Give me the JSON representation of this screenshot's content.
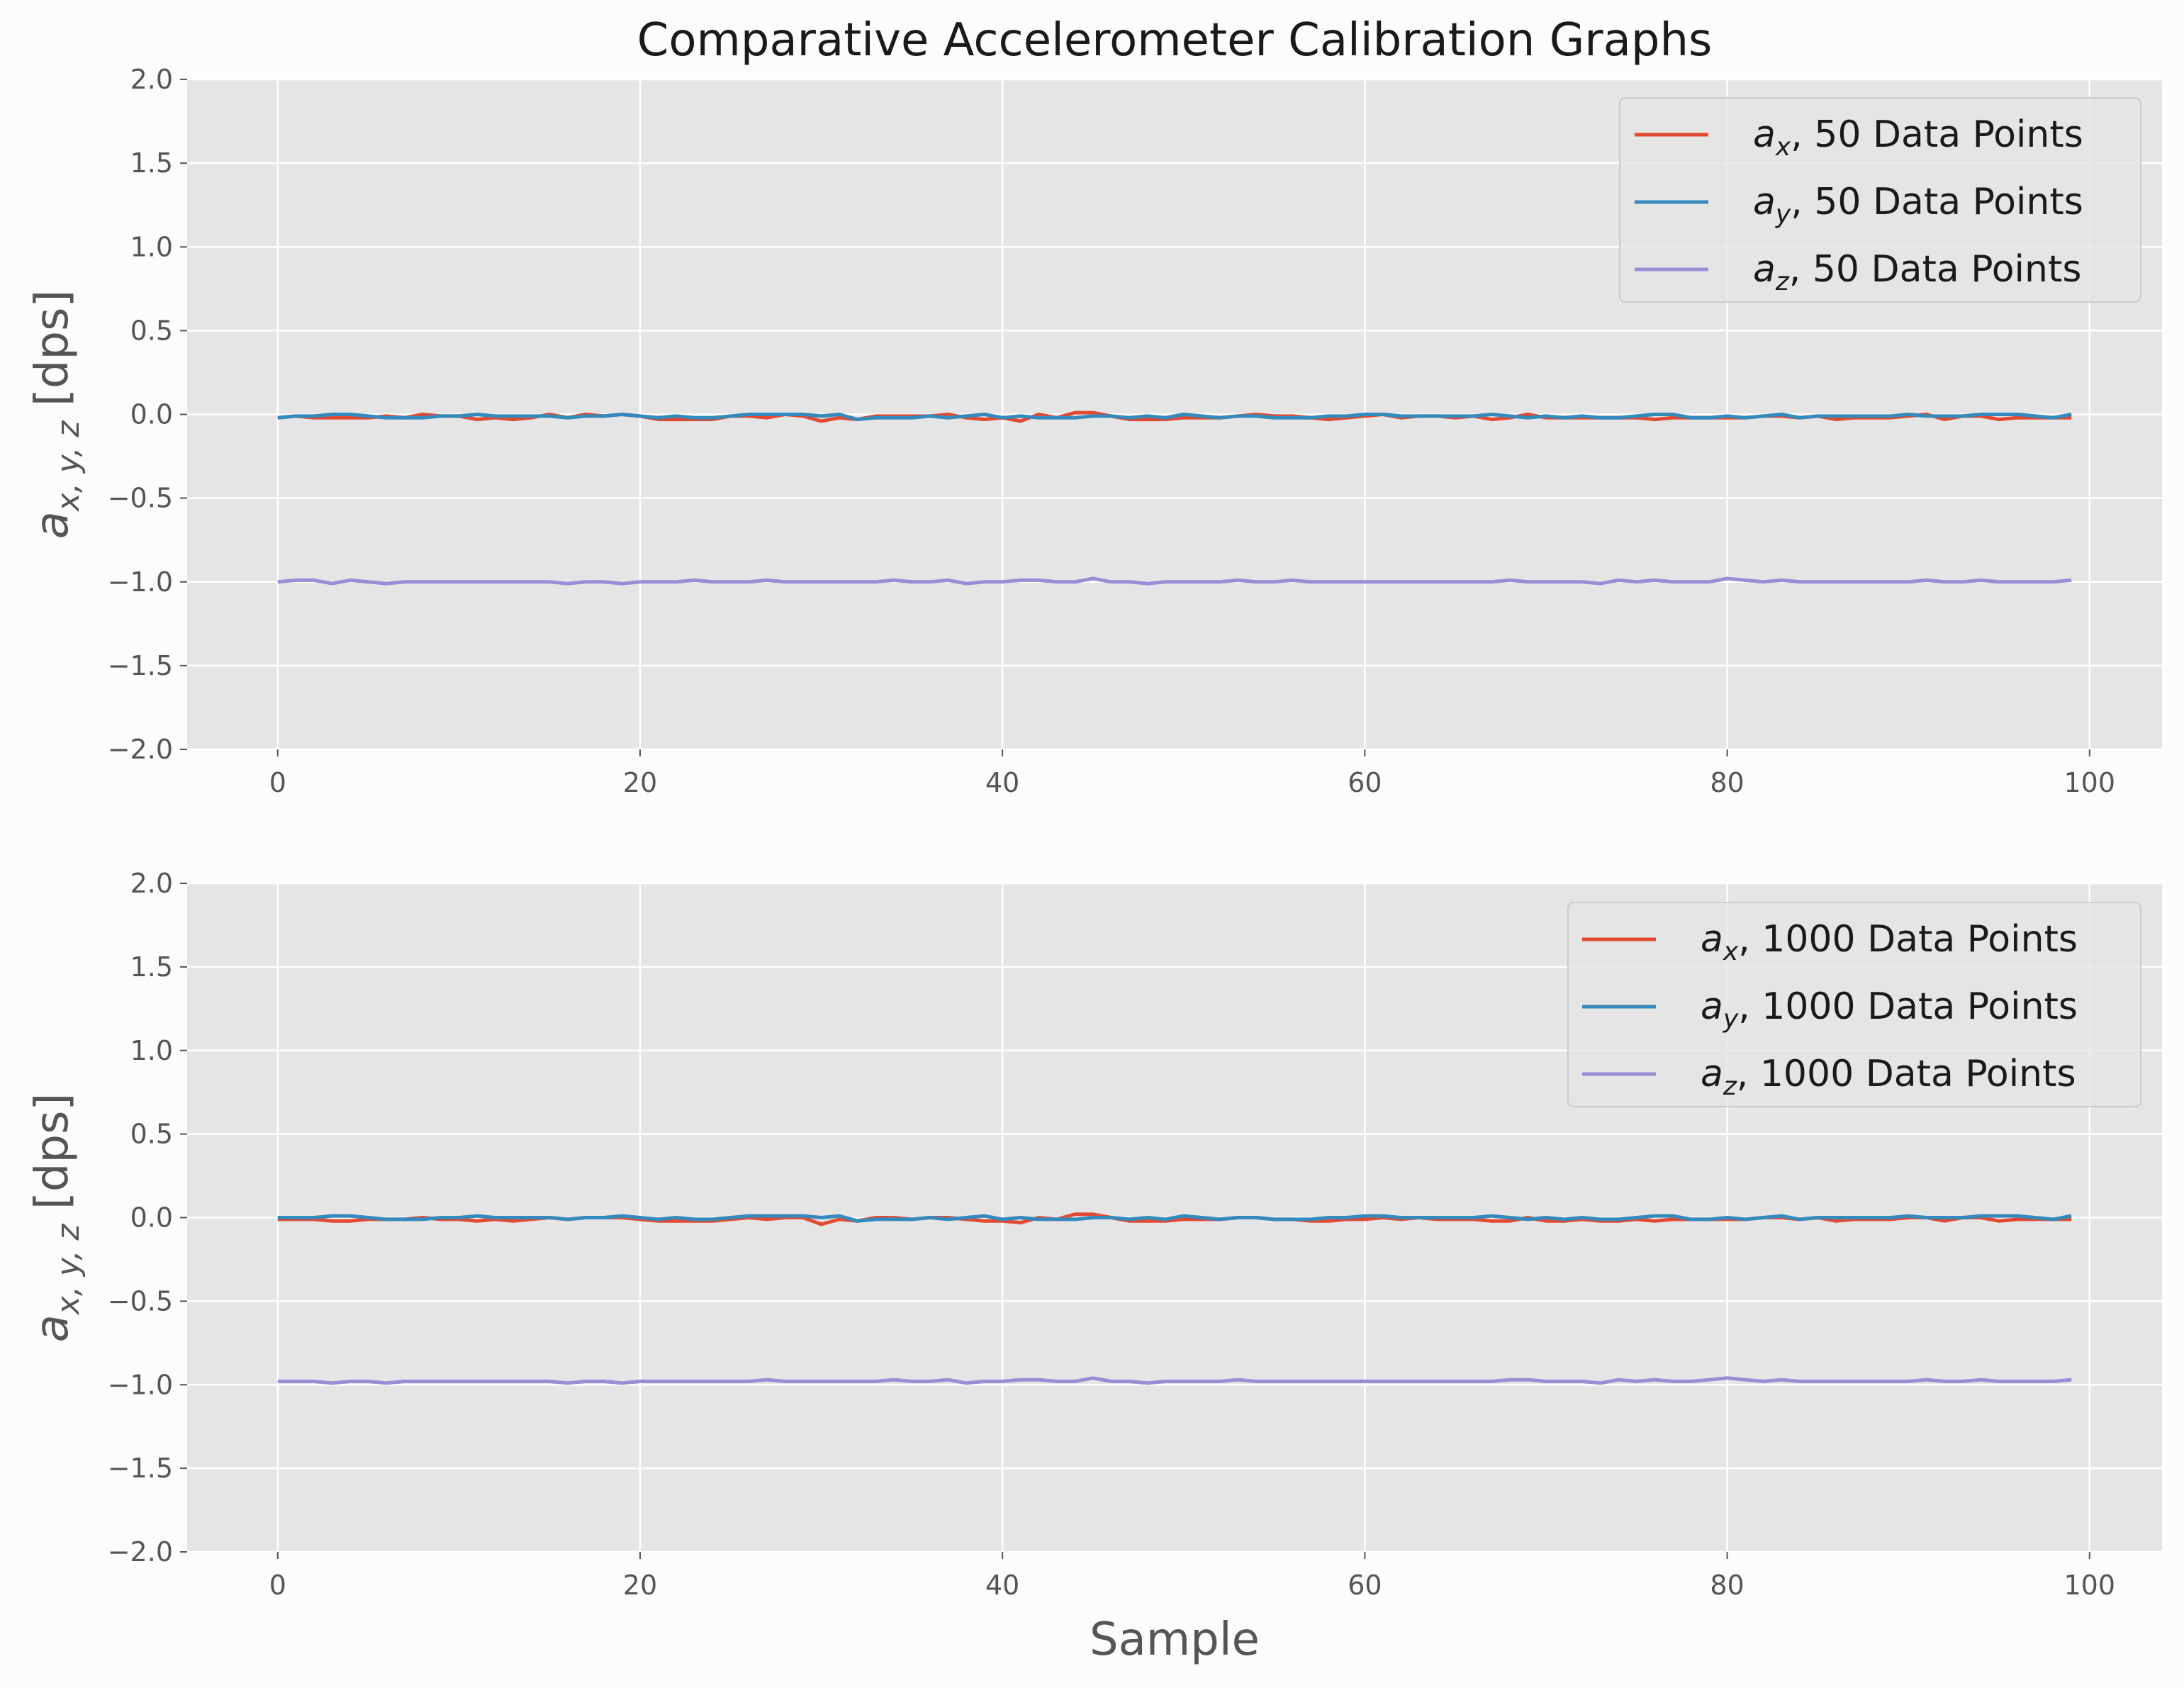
{
  "chart_data": {
    "type": "line",
    "title": "Comparative Accelerometer Calibration Graphs",
    "xlabel": "Sample",
    "ylabel_main": "a",
    "ylabel_sub": "x, y, z",
    "ylabel_unit": "[dps]",
    "xlim": [
      -5,
      104
    ],
    "ylim": [
      -2.0,
      2.0
    ],
    "xticks": [
      0,
      20,
      40,
      60,
      80,
      100
    ],
    "yticks": [
      -2.0,
      -1.5,
      -1.0,
      -0.5,
      0.0,
      0.5,
      1.0,
      1.5,
      2.0
    ],
    "grid": true,
    "legend_position": "top-right",
    "colors": {
      "ax": "#E24A33",
      "ay": "#348ABD",
      "az": "#988ED5",
      "plot_bg": "#E5E5E5",
      "grid": "#FFFFFF",
      "page_bg": "#FCFCFC"
    },
    "x": [
      0,
      1,
      2,
      3,
      4,
      5,
      6,
      7,
      8,
      9,
      10,
      11,
      12,
      13,
      14,
      15,
      16,
      17,
      18,
      19,
      20,
      21,
      22,
      23,
      24,
      25,
      26,
      27,
      28,
      29,
      30,
      31,
      32,
      33,
      34,
      35,
      36,
      37,
      38,
      39,
      40,
      41,
      42,
      43,
      44,
      45,
      46,
      47,
      48,
      49,
      50,
      51,
      52,
      53,
      54,
      55,
      56,
      57,
      58,
      59,
      60,
      61,
      62,
      63,
      64,
      65,
      66,
      67,
      68,
      69,
      70,
      71,
      72,
      73,
      74,
      75,
      76,
      77,
      78,
      79,
      80,
      81,
      82,
      83,
      84,
      85,
      86,
      87,
      88,
      89,
      90,
      91,
      92,
      93,
      94,
      95,
      96,
      97,
      98,
      99
    ],
    "panels": [
      {
        "series": [
          {
            "name_main": "a",
            "name_sub": "x",
            "name_rest": ", 50 Data Points",
            "key": "ax",
            "values": [
              -0.02,
              -0.01,
              -0.02,
              -0.02,
              -0.02,
              -0.02,
              -0.01,
              -0.02,
              0.0,
              -0.01,
              -0.01,
              -0.03,
              -0.02,
              -0.03,
              -0.02,
              0.0,
              -0.02,
              0.0,
              -0.01,
              0.0,
              -0.01,
              -0.03,
              -0.03,
              -0.03,
              -0.03,
              -0.01,
              -0.01,
              -0.02,
              0.0,
              -0.01,
              -0.04,
              -0.02,
              -0.03,
              -0.01,
              -0.01,
              -0.01,
              -0.01,
              0.0,
              -0.02,
              -0.03,
              -0.02,
              -0.04,
              0.0,
              -0.02,
              0.01,
              0.01,
              -0.01,
              -0.03,
              -0.03,
              -0.03,
              -0.02,
              -0.02,
              -0.02,
              -0.01,
              0.0,
              -0.01,
              -0.01,
              -0.02,
              -0.03,
              -0.02,
              -0.01,
              0.0,
              -0.02,
              -0.01,
              -0.01,
              -0.02,
              -0.01,
              -0.03,
              -0.02,
              0.0,
              -0.02,
              -0.02,
              -0.02,
              -0.02,
              -0.02,
              -0.02,
              -0.03,
              -0.02,
              -0.02,
              -0.02,
              -0.02,
              -0.02,
              -0.01,
              -0.01,
              -0.02,
              -0.01,
              -0.03,
              -0.02,
              -0.02,
              -0.02,
              -0.01,
              0.0,
              -0.03,
              -0.01,
              -0.01,
              -0.03,
              -0.02,
              -0.02,
              -0.02,
              -0.02
            ]
          },
          {
            "name_main": "a",
            "name_sub": "y",
            "name_rest": ", 50 Data Points",
            "key": "ay",
            "values": [
              -0.02,
              -0.01,
              -0.01,
              0.0,
              0.0,
              -0.01,
              -0.02,
              -0.02,
              -0.02,
              -0.01,
              -0.01,
              0.0,
              -0.01,
              -0.01,
              -0.01,
              -0.01,
              -0.02,
              -0.01,
              -0.01,
              0.0,
              -0.01,
              -0.02,
              -0.01,
              -0.02,
              -0.02,
              -0.01,
              0.0,
              0.0,
              0.0,
              0.0,
              -0.01,
              0.0,
              -0.03,
              -0.02,
              -0.02,
              -0.02,
              -0.01,
              -0.02,
              -0.01,
              0.0,
              -0.02,
              -0.01,
              -0.02,
              -0.02,
              -0.02,
              -0.01,
              -0.01,
              -0.02,
              -0.01,
              -0.02,
              0.0,
              -0.01,
              -0.02,
              -0.01,
              -0.01,
              -0.02,
              -0.02,
              -0.02,
              -0.01,
              -0.01,
              0.0,
              0.0,
              -0.01,
              -0.01,
              -0.01,
              -0.01,
              -0.01,
              0.0,
              -0.01,
              -0.02,
              -0.01,
              -0.02,
              -0.01,
              -0.02,
              -0.02,
              -0.01,
              0.0,
              0.0,
              -0.02,
              -0.02,
              -0.01,
              -0.02,
              -0.01,
              0.0,
              -0.02,
              -0.01,
              -0.01,
              -0.01,
              -0.01,
              -0.01,
              0.0,
              -0.01,
              -0.01,
              -0.01,
              0.0,
              0.0,
              0.0,
              -0.01,
              -0.02,
              0.0
            ]
          },
          {
            "name_main": "a",
            "name_sub": "z",
            "name_rest": ", 50 Data Points",
            "key": "az",
            "values": [
              -1.0,
              -0.99,
              -0.99,
              -1.01,
              -0.99,
              -1.0,
              -1.01,
              -1.0,
              -1.0,
              -1.0,
              -1.0,
              -1.0,
              -1.0,
              -1.0,
              -1.0,
              -1.0,
              -1.01,
              -1.0,
              -1.0,
              -1.01,
              -1.0,
              -1.0,
              -1.0,
              -0.99,
              -1.0,
              -1.0,
              -1.0,
              -0.99,
              -1.0,
              -1.0,
              -1.0,
              -1.0,
              -1.0,
              -1.0,
              -0.99,
              -1.0,
              -1.0,
              -0.99,
              -1.01,
              -1.0,
              -1.0,
              -0.99,
              -0.99,
              -1.0,
              -1.0,
              -0.98,
              -1.0,
              -1.0,
              -1.01,
              -1.0,
              -1.0,
              -1.0,
              -1.0,
              -0.99,
              -1.0,
              -1.0,
              -0.99,
              -1.0,
              -1.0,
              -1.0,
              -1.0,
              -1.0,
              -1.0,
              -1.0,
              -1.0,
              -1.0,
              -1.0,
              -1.0,
              -0.99,
              -1.0,
              -1.0,
              -1.0,
              -1.0,
              -1.01,
              -0.99,
              -1.0,
              -0.99,
              -1.0,
              -1.0,
              -1.0,
              -0.98,
              -0.99,
              -1.0,
              -0.99,
              -1.0,
              -1.0,
              -1.0,
              -1.0,
              -1.0,
              -1.0,
              -1.0,
              -0.99,
              -1.0,
              -1.0,
              -0.99,
              -1.0,
              -1.0,
              -1.0,
              -1.0,
              -0.99
            ]
          }
        ]
      },
      {
        "series": [
          {
            "name_main": "a",
            "name_sub": "x",
            "name_rest": ", 1000 Data Points",
            "key": "ax",
            "values": [
              -0.01,
              -0.01,
              -0.01,
              -0.02,
              -0.02,
              -0.01,
              -0.01,
              -0.01,
              0.0,
              -0.01,
              -0.01,
              -0.02,
              -0.01,
              -0.02,
              -0.01,
              0.0,
              -0.01,
              0.0,
              0.0,
              0.0,
              -0.01,
              -0.02,
              -0.02,
              -0.02,
              -0.02,
              -0.01,
              0.0,
              -0.01,
              0.0,
              0.0,
              -0.04,
              -0.01,
              -0.02,
              0.0,
              0.0,
              -0.01,
              0.0,
              0.0,
              -0.01,
              -0.02,
              -0.02,
              -0.03,
              0.0,
              -0.01,
              0.02,
              0.02,
              0.0,
              -0.02,
              -0.02,
              -0.02,
              -0.01,
              -0.01,
              -0.01,
              0.0,
              0.0,
              -0.01,
              -0.01,
              -0.02,
              -0.02,
              -0.01,
              -0.01,
              0.0,
              -0.01,
              0.0,
              -0.01,
              -0.01,
              -0.01,
              -0.02,
              -0.02,
              0.0,
              -0.02,
              -0.02,
              -0.01,
              -0.02,
              -0.02,
              -0.01,
              -0.02,
              -0.01,
              -0.01,
              -0.01,
              -0.01,
              -0.01,
              0.0,
              0.0,
              -0.01,
              0.0,
              -0.02,
              -0.01,
              -0.01,
              -0.01,
              0.0,
              0.0,
              -0.02,
              0.0,
              0.0,
              -0.02,
              -0.01,
              -0.01,
              -0.01,
              -0.01
            ]
          },
          {
            "name_main": "a",
            "name_sub": "y",
            "name_rest": ", 1000 Data Points",
            "key": "ay",
            "values": [
              0.0,
              0.0,
              0.0,
              0.01,
              0.01,
              0.0,
              -0.01,
              -0.01,
              -0.01,
              0.0,
              0.0,
              0.01,
              0.0,
              0.0,
              0.0,
              0.0,
              -0.01,
              0.0,
              0.0,
              0.01,
              0.0,
              -0.01,
              0.0,
              -0.01,
              -0.01,
              0.0,
              0.01,
              0.01,
              0.01,
              0.01,
              0.0,
              0.01,
              -0.02,
              -0.01,
              -0.01,
              -0.01,
              0.0,
              -0.01,
              0.0,
              0.01,
              -0.01,
              0.0,
              -0.01,
              -0.01,
              -0.01,
              0.0,
              0.0,
              -0.01,
              0.0,
              -0.01,
              0.01,
              0.0,
              -0.01,
              0.0,
              0.0,
              -0.01,
              -0.01,
              -0.01,
              0.0,
              0.0,
              0.01,
              0.01,
              0.0,
              0.0,
              0.0,
              0.0,
              0.0,
              0.01,
              0.0,
              -0.01,
              0.0,
              -0.01,
              0.0,
              -0.01,
              -0.01,
              0.0,
              0.01,
              0.01,
              -0.01,
              -0.01,
              0.0,
              -0.01,
              0.0,
              0.01,
              -0.01,
              0.0,
              0.0,
              0.0,
              0.0,
              0.0,
              0.01,
              0.0,
              0.0,
              0.0,
              0.01,
              0.01,
              0.01,
              0.0,
              -0.01,
              0.01
            ]
          },
          {
            "name_main": "a",
            "name_sub": "z",
            "name_rest": ", 1000 Data Points",
            "key": "az",
            "values": [
              -0.98,
              -0.98,
              -0.98,
              -0.99,
              -0.98,
              -0.98,
              -0.99,
              -0.98,
              -0.98,
              -0.98,
              -0.98,
              -0.98,
              -0.98,
              -0.98,
              -0.98,
              -0.98,
              -0.99,
              -0.98,
              -0.98,
              -0.99,
              -0.98,
              -0.98,
              -0.98,
              -0.98,
              -0.98,
              -0.98,
              -0.98,
              -0.97,
              -0.98,
              -0.98,
              -0.98,
              -0.98,
              -0.98,
              -0.98,
              -0.97,
              -0.98,
              -0.98,
              -0.97,
              -0.99,
              -0.98,
              -0.98,
              -0.97,
              -0.97,
              -0.98,
              -0.98,
              -0.96,
              -0.98,
              -0.98,
              -0.99,
              -0.98,
              -0.98,
              -0.98,
              -0.98,
              -0.97,
              -0.98,
              -0.98,
              -0.98,
              -0.98,
              -0.98,
              -0.98,
              -0.98,
              -0.98,
              -0.98,
              -0.98,
              -0.98,
              -0.98,
              -0.98,
              -0.98,
              -0.97,
              -0.97,
              -0.98,
              -0.98,
              -0.98,
              -0.99,
              -0.97,
              -0.98,
              -0.97,
              -0.98,
              -0.98,
              -0.97,
              -0.96,
              -0.97,
              -0.98,
              -0.97,
              -0.98,
              -0.98,
              -0.98,
              -0.98,
              -0.98,
              -0.98,
              -0.98,
              -0.97,
              -0.98,
              -0.98,
              -0.97,
              -0.98,
              -0.98,
              -0.98,
              -0.98,
              -0.97
            ]
          }
        ]
      }
    ]
  }
}
